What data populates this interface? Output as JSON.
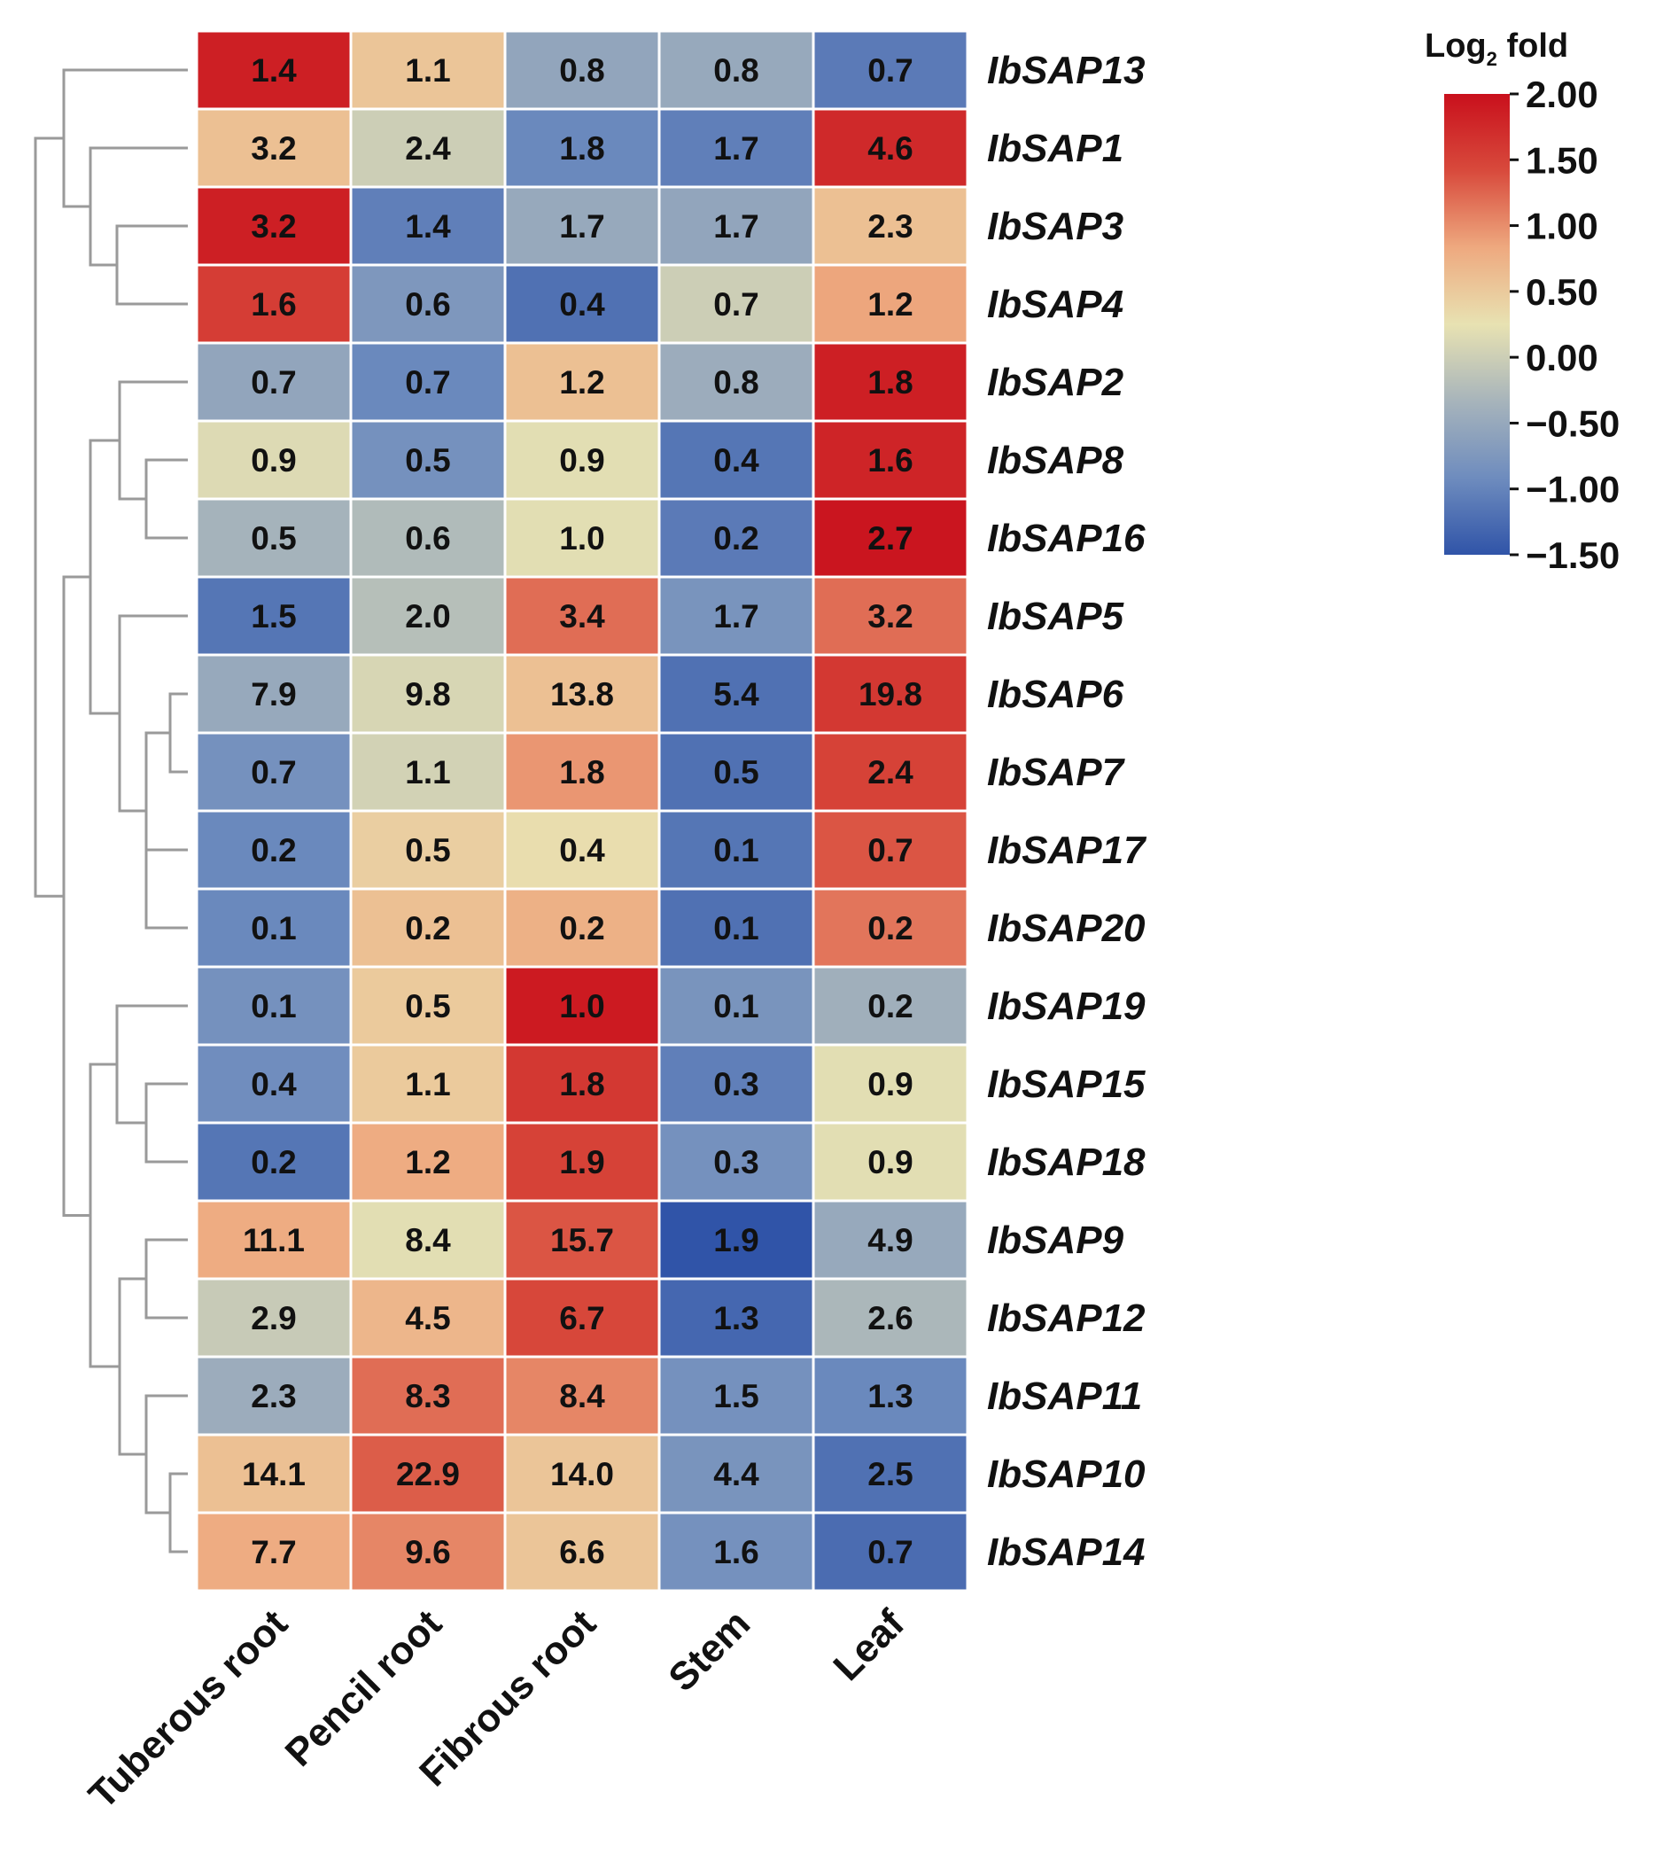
{
  "chart_data": {
    "type": "heatmap",
    "title": "",
    "rows": [
      "IbSAP13",
      "IbSAP1",
      "IbSAP3",
      "IbSAP4",
      "IbSAP2",
      "IbSAP8",
      "IbSAP16",
      "IbSAP5",
      "IbSAP6",
      "IbSAP7",
      "IbSAP17",
      "IbSAP20",
      "IbSAP19",
      "IbSAP15",
      "IbSAP18",
      "IbSAP9",
      "IbSAP12",
      "IbSAP11",
      "IbSAP10",
      "IbSAP14"
    ],
    "columns": [
      "Tuberous root",
      "Pencil root",
      "Fibrous root",
      "Stem",
      "Leaf"
    ],
    "values": [
      [
        "1.4",
        "1.1",
        "0.8",
        "0.8",
        "0.7"
      ],
      [
        "3.2",
        "2.4",
        "1.8",
        "1.7",
        "4.6"
      ],
      [
        "3.2",
        "1.4",
        "1.7",
        "1.7",
        "2.3"
      ],
      [
        "1.6",
        "0.6",
        "0.4",
        "0.7",
        "1.2"
      ],
      [
        "0.7",
        "0.7",
        "1.2",
        "0.8",
        "1.8"
      ],
      [
        "0.9",
        "0.5",
        "0.9",
        "0.4",
        "1.6"
      ],
      [
        "0.5",
        "0.6",
        "1.0",
        "0.2",
        "2.7"
      ],
      [
        "1.5",
        "2.0",
        "3.4",
        "1.7",
        "3.2"
      ],
      [
        "7.9",
        "9.8",
        "13.8",
        "5.4",
        "19.8"
      ],
      [
        "0.7",
        "1.1",
        "1.8",
        "0.5",
        "2.4"
      ],
      [
        "0.2",
        "0.5",
        "0.4",
        "0.1",
        "0.7"
      ],
      [
        "0.1",
        "0.2",
        "0.2",
        "0.1",
        "0.2"
      ],
      [
        "0.1",
        "0.5",
        "1.0",
        "0.1",
        "0.2"
      ],
      [
        "0.4",
        "1.1",
        "1.8",
        "0.3",
        "0.9"
      ],
      [
        "0.2",
        "1.2",
        "1.9",
        "0.3",
        "0.9"
      ],
      [
        "11.1",
        "8.4",
        "15.7",
        "1.9",
        "4.9"
      ],
      [
        "2.9",
        "4.5",
        "6.7",
        "1.3",
        "2.6"
      ],
      [
        "2.3",
        "8.3",
        "8.4",
        "1.5",
        "1.3"
      ],
      [
        "14.1",
        "22.9",
        "14.0",
        "4.4",
        "2.5"
      ],
      [
        "7.7",
        "9.6",
        "6.6",
        "1.6",
        "0.7"
      ]
    ],
    "log2_color_values": [
      [
        1.85,
        0.55,
        -0.55,
        -0.5,
        -1.1
      ],
      [
        0.6,
        0.0,
        -0.95,
        -1.05,
        1.75
      ],
      [
        1.85,
        -1.05,
        -0.5,
        -0.55,
        0.6
      ],
      [
        1.55,
        -0.75,
        -1.2,
        0.0,
        0.85
      ],
      [
        -0.55,
        -0.95,
        0.6,
        -0.45,
        1.85
      ],
      [
        0.15,
        -0.85,
        0.2,
        -1.15,
        1.8
      ],
      [
        -0.35,
        -0.25,
        0.2,
        -1.1,
        1.95
      ],
      [
        -1.15,
        -0.2,
        1.2,
        -0.8,
        1.2
      ],
      [
        -0.5,
        0.1,
        0.6,
        -1.2,
        1.6
      ],
      [
        -0.85,
        0.05,
        0.95,
        -1.2,
        1.5
      ],
      [
        -0.95,
        0.45,
        0.3,
        -1.15,
        1.35
      ],
      [
        -0.95,
        0.6,
        0.75,
        -1.2,
        1.15
      ],
      [
        -0.85,
        0.5,
        1.9,
        -0.8,
        -0.4
      ],
      [
        -0.9,
        0.5,
        1.6,
        -1.05,
        0.2
      ],
      [
        -1.15,
        0.8,
        1.5,
        -0.85,
        0.2
      ],
      [
        0.8,
        0.2,
        1.35,
        -1.5,
        -0.5
      ],
      [
        -0.05,
        0.7,
        1.45,
        -1.3,
        -0.3
      ],
      [
        -0.45,
        1.2,
        1.05,
        -0.85,
        -0.95
      ],
      [
        0.6,
        1.3,
        0.55,
        -0.8,
        -1.2
      ],
      [
        0.8,
        1.05,
        0.55,
        -0.85,
        -1.25
      ]
    ],
    "dendrogram_row_order_leaves": 20,
    "legend": {
      "title": "Log",
      "title_sub": "2",
      "title_suffix": " fold",
      "ticks": [
        "2.00",
        "1.50",
        "1.00",
        "0.50",
        "0.00",
        "−0.50",
        "−1.00",
        "−1.50"
      ],
      "range": [
        -1.5,
        2.0
      ],
      "colors": [
        "#3054a8",
        "#6e8cbe",
        "#a7b4bb",
        "#e8e2b2",
        "#eea97f",
        "#d84a3c",
        "#c9101c"
      ]
    }
  }
}
